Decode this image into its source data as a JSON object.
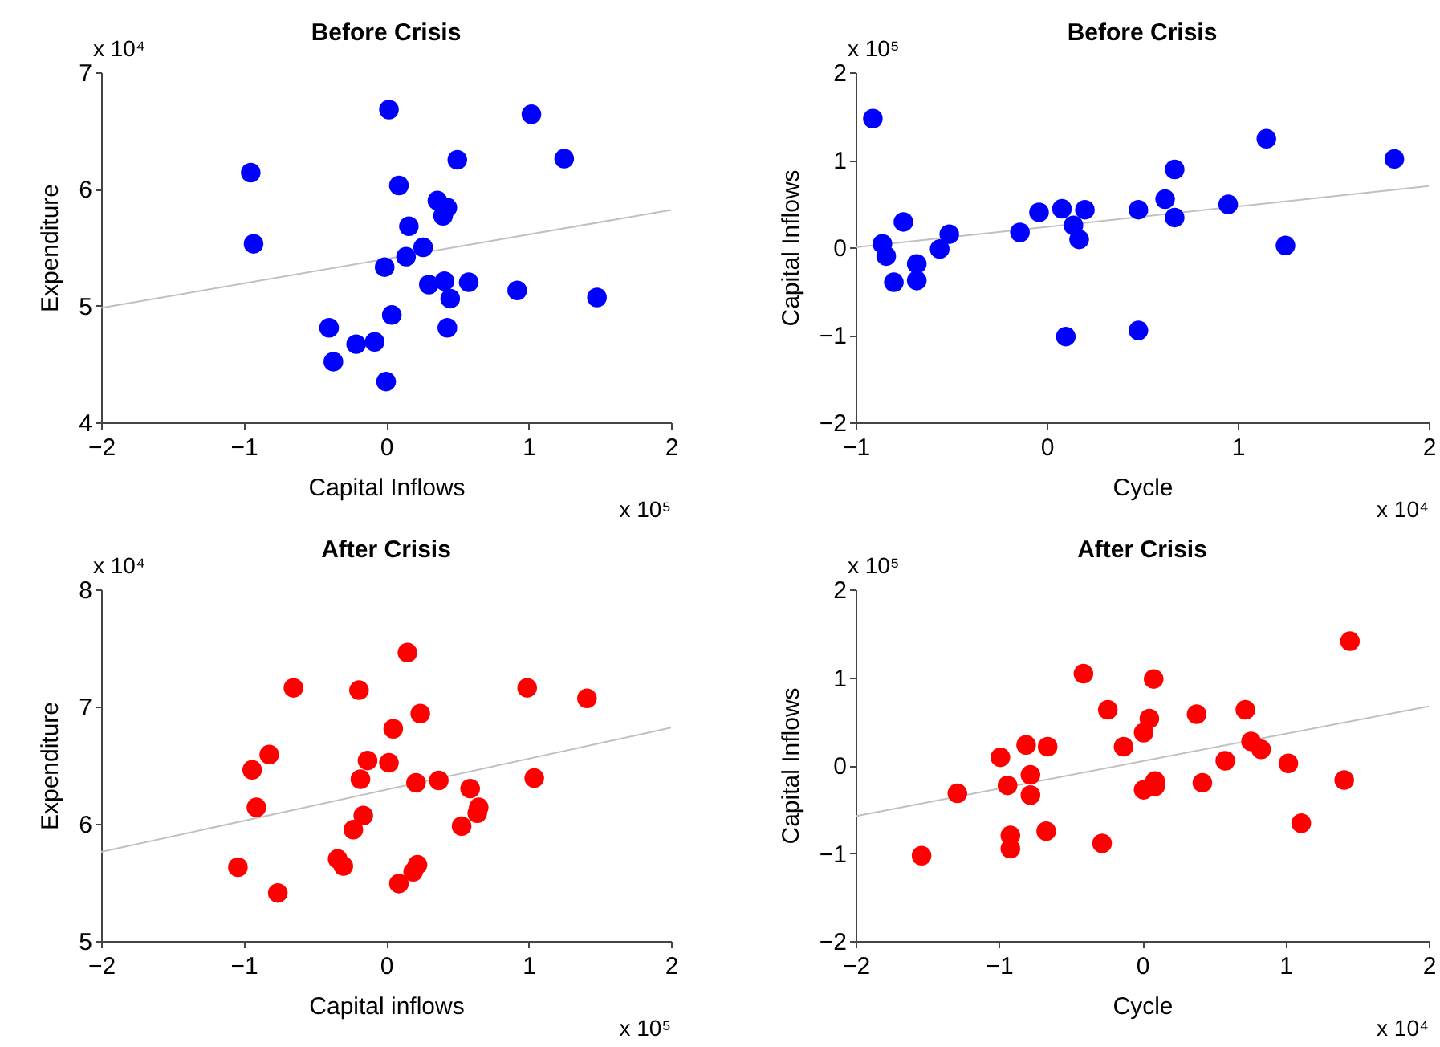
{
  "chart_data": [
    {
      "type": "scatter",
      "title": "Before Crisis",
      "xlabel": "Capital Inflows",
      "ylabel": "Expenditure",
      "xlim": [
        -2,
        2
      ],
      "xticks": [
        -2,
        -1,
        0,
        1,
        2
      ],
      "ylim": [
        4,
        7
      ],
      "yticks": [
        4,
        5,
        6,
        7
      ],
      "grid": false,
      "marker": "circle",
      "annotations": [
        "x 10⁴",
        "x 10⁵"
      ],
      "series": [
        {
          "type": "scatter",
          "color": "#0000ff",
          "x": [
            -0.95,
            -0.93,
            0.02,
            1.02,
            1.25,
            0.5,
            0.09,
            0.36,
            0.43,
            0.4,
            0.16,
            0.26,
            0.14,
            -0.01,
            0.3,
            0.41,
            0.58,
            0.45,
            0.92,
            1.48,
            0.04,
            -0.4,
            0.43,
            -0.21,
            -0.08,
            -0.37,
            0.0
          ],
          "values": [
            6.14,
            5.53,
            6.68,
            6.64,
            6.26,
            6.25,
            6.03,
            5.9,
            5.84,
            5.77,
            5.68,
            5.5,
            5.42,
            5.33,
            5.18,
            5.21,
            5.2,
            5.06,
            5.13,
            5.07,
            4.92,
            4.81,
            4.81,
            4.67,
            4.69,
            4.52,
            4.35
          ]
        },
        {
          "type": "line",
          "color": "#c0c0c0",
          "marker": "none",
          "x": [
            -2,
            2
          ],
          "values": [
            4.98,
            5.82
          ]
        }
      ]
    },
    {
      "type": "scatter",
      "title": "Before Crisis",
      "xlabel": "Cycle",
      "ylabel": "Capital Inflows",
      "xlim": [
        -1,
        2
      ],
      "xticks": [
        -1,
        0,
        1,
        2
      ],
      "ylim": [
        -2,
        2
      ],
      "yticks": [
        -2,
        -1,
        0,
        1,
        2
      ],
      "grid": false,
      "marker": "circle",
      "annotations": [
        "x 10⁵",
        "x 10⁴"
      ],
      "series": [
        {
          "type": "scatter",
          "color": "#0000ff",
          "x": [
            -0.91,
            -0.86,
            -0.84,
            -0.8,
            -0.75,
            -0.68,
            -0.68,
            -0.56,
            -0.51,
            -0.14,
            -0.04,
            0.08,
            0.14,
            0.17,
            0.2,
            0.1,
            0.48,
            0.48,
            0.62,
            0.67,
            0.67,
            0.95,
            1.15,
            1.25,
            1.82
          ],
          "values": [
            1.47,
            0.04,
            -0.1,
            -0.4,
            0.29,
            -0.19,
            -0.38,
            -0.02,
            0.15,
            0.17,
            0.4,
            0.44,
            0.25,
            0.09,
            0.43,
            -1.02,
            -0.95,
            0.43,
            0.55,
            0.89,
            0.34,
            0.49,
            1.24,
            0.02,
            1.01
          ]
        },
        {
          "type": "line",
          "color": "#c0c0c0",
          "marker": "none",
          "x": [
            -1,
            2
          ],
          "values": [
            0.0,
            0.7
          ]
        }
      ]
    },
    {
      "type": "scatter",
      "title": "After Crisis",
      "xlabel": "Capital inflows",
      "ylabel": "Expenditure",
      "xlim": [
        -2,
        2
      ],
      "xticks": [
        -2,
        -1,
        0,
        1,
        2
      ],
      "ylim": [
        5,
        8
      ],
      "yticks": [
        5,
        6,
        7,
        8
      ],
      "grid": false,
      "marker": "circle",
      "annotations": [
        "x 10⁴",
        "x 10⁵"
      ],
      "series": [
        {
          "type": "scatter",
          "color": "#ff0000",
          "x": [
            -1.04,
            -0.76,
            -0.94,
            -0.82,
            -0.91,
            -0.65,
            -0.19,
            0.15,
            0.24,
            0.05,
            0.02,
            -0.13,
            -0.18,
            0.21,
            0.37,
            -0.16,
            -0.23,
            -0.34,
            -0.3,
            0.09,
            0.19,
            0.22,
            0.53,
            0.59,
            0.64,
            0.65,
            0.99,
            1.04,
            1.41
          ],
          "values": [
            5.63,
            5.41,
            6.46,
            6.59,
            6.14,
            7.16,
            7.14,
            7.46,
            6.94,
            6.81,
            6.52,
            6.54,
            6.38,
            6.35,
            6.37,
            6.07,
            5.95,
            5.7,
            5.64,
            5.49,
            5.59,
            5.65,
            5.98,
            6.3,
            6.09,
            6.14,
            7.16,
            6.39,
            7.07
          ]
        },
        {
          "type": "line",
          "color": "#c0c0c0",
          "marker": "none",
          "x": [
            -2,
            2
          ],
          "values": [
            5.76,
            6.82
          ]
        }
      ]
    },
    {
      "type": "scatter",
      "title": "After Crisis",
      "xlabel": "Cycle",
      "ylabel": "Capital Inflows",
      "xlim": [
        -2,
        2
      ],
      "xticks": [
        -2,
        -1,
        0,
        1,
        2
      ],
      "ylim": [
        -2,
        2
      ],
      "yticks": [
        -2,
        -1,
        0,
        1,
        2
      ],
      "grid": false,
      "marker": "circle",
      "annotations": [
        "x 10⁵",
        "x 10⁴"
      ],
      "series": [
        {
          "type": "scatter",
          "color": "#ff0000",
          "x": [
            -1.54,
            -1.29,
            -0.99,
            -0.94,
            -0.92,
            -0.92,
            -0.81,
            -0.78,
            -0.78,
            -0.67,
            -0.66,
            -0.41,
            -0.28,
            -0.24,
            -0.13,
            0.01,
            0.05,
            0.01,
            0.08,
            0.09,
            0.09,
            0.38,
            0.42,
            0.58,
            0.72,
            0.76,
            0.83,
            1.02,
            1.11,
            1.41,
            1.45
          ],
          "values": [
            -1.03,
            -0.32,
            0.09,
            -0.23,
            -0.8,
            -0.95,
            0.23,
            -0.11,
            -0.34,
            -0.75,
            0.21,
            1.04,
            -0.89,
            0.63,
            0.21,
            0.37,
            0.53,
            -0.28,
            0.98,
            -0.18,
            -0.24,
            0.58,
            -0.2,
            0.05,
            0.63,
            0.27,
            0.18,
            0.02,
            -0.66,
            -0.17,
            1.41
          ]
        },
        {
          "type": "line",
          "color": "#c0c0c0",
          "marker": "none",
          "x": [
            -2,
            2
          ],
          "values": [
            -0.58,
            0.67
          ]
        }
      ]
    }
  ]
}
